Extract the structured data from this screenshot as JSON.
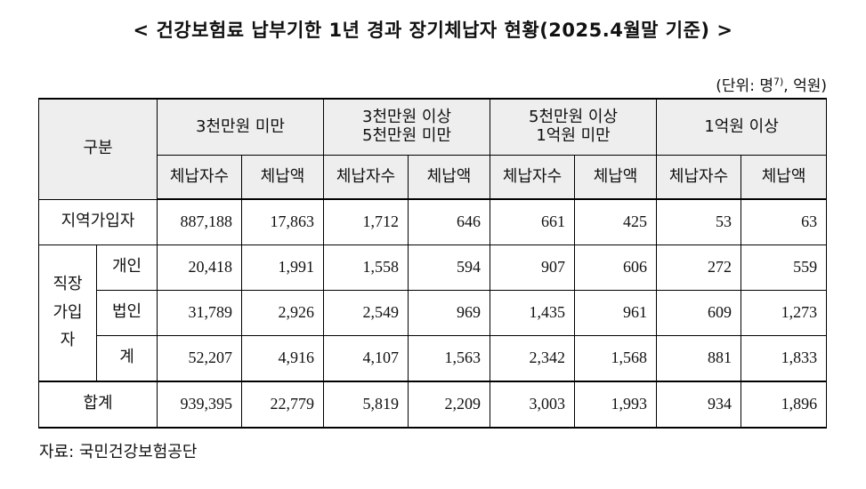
{
  "title": "< 건강보험료 납부기한 1년 경과 장기체납자 현황(2025.4월말 기준) >",
  "unit": {
    "prefix": "(단위: 명",
    "sup": "7)",
    "suffix": ", 억원)"
  },
  "table": {
    "gubun": "구분",
    "groups": [
      {
        "line1": "3천만원 미만",
        "line2": ""
      },
      {
        "line1": "3천만원 이상",
        "line2": "5천만원 미만"
      },
      {
        "line1": "5천만원 이상",
        "line2": "1억원 미만"
      },
      {
        "line1": "1억원 이상",
        "line2": ""
      }
    ],
    "sub_count": "체납자수",
    "sub_amount": "체납액",
    "rows": {
      "regional": {
        "label": "지역가입자",
        "values": [
          "887,188",
          "17,863",
          "1,712",
          "646",
          "661",
          "425",
          "53",
          "63"
        ]
      },
      "workplace_label": [
        "직장",
        "가입",
        "자"
      ],
      "individual": {
        "label": "개인",
        "values": [
          "20,418",
          "1,991",
          "1,558",
          "594",
          "907",
          "606",
          "272",
          "559"
        ]
      },
      "corporate": {
        "label": "법인",
        "values": [
          "31,789",
          "2,926",
          "2,549",
          "969",
          "1,435",
          "961",
          "609",
          "1,273"
        ]
      },
      "subtotal": {
        "label": "계",
        "values": [
          "52,207",
          "4,916",
          "4,107",
          "1,563",
          "2,342",
          "1,568",
          "881",
          "1,833"
        ]
      },
      "total": {
        "label": "합계",
        "values": [
          "939,395",
          "22,779",
          "5,819",
          "2,209",
          "3,003",
          "1,993",
          "934",
          "1,896"
        ]
      }
    }
  },
  "source": "자료: 국민건강보험공단"
}
